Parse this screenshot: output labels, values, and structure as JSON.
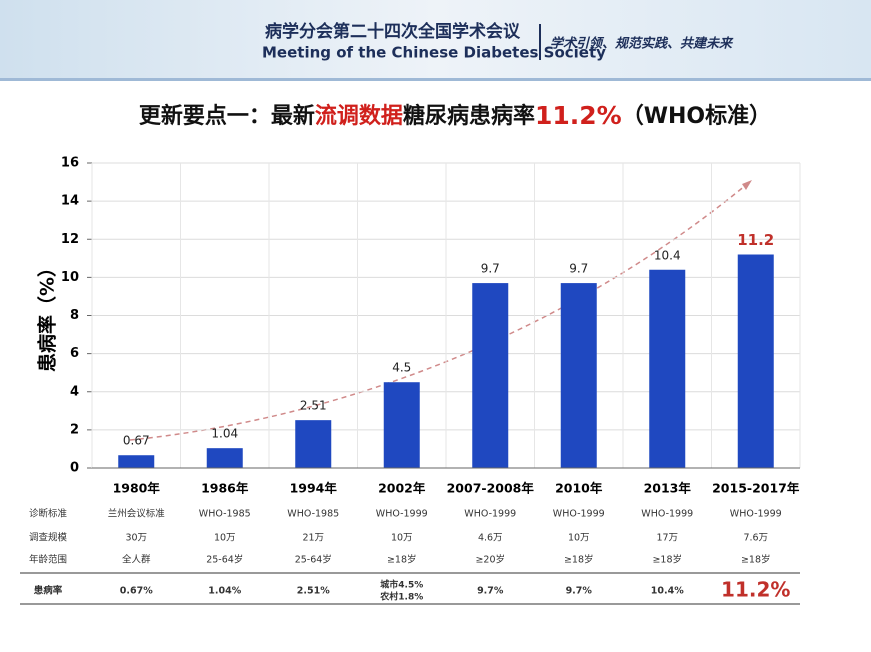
{
  "header": {
    "title": "病学分会第二十四次全国学术会议",
    "subtitle": "Meeting of the Chinese Diabetes Society",
    "slogan": "学术引领、规范实践、共建未来"
  },
  "title_parts": [
    {
      "text": "更新要点一：最新",
      "color": "#111111"
    },
    {
      "text": "流调数据",
      "color": "#d0201c"
    },
    {
      "text": "糖尿病患病率",
      "color": "#111111"
    },
    {
      "text": "11.2%",
      "color": "#d0201c"
    },
    {
      "text": "（WHO标准）",
      "color": "#111111"
    }
  ],
  "chart_data": {
    "type": "bar",
    "y_label": "患病率（%）",
    "categories": [
      "1980年",
      "1986年",
      "1994年",
      "2002年",
      "2007-2008年",
      "2010年",
      "2013年",
      "2015-2017年"
    ],
    "values": [
      0.67,
      1.04,
      2.51,
      4.5,
      9.7,
      9.7,
      10.4,
      11.2
    ],
    "color": "#1f48c0",
    "label_colors": [
      "#222222",
      "#222222",
      "#222222",
      "#222222",
      "#222222",
      "#222222",
      "#222222",
      "#c0302a"
    ],
    "ylim": [
      0,
      16
    ],
    "yticks": [
      0,
      2,
      4,
      6,
      8,
      10,
      12,
      14,
      16
    ],
    "grid": true
  },
  "table": {
    "rows": [
      {
        "label": "诊断标准",
        "cells": [
          "兰州会议标准",
          "WHO-1985",
          "WHO-1985",
          "WHO-1999",
          "WHO-1999",
          "WHO-1999",
          "WHO-1999",
          "WHO-1999"
        ]
      },
      {
        "label": "调查规模",
        "cells": [
          "30万",
          "10万",
          "21万",
          "10万",
          "4.6万",
          "10万",
          "17万",
          "7.6万"
        ]
      },
      {
        "label": "年龄范围",
        "cells": [
          "全人群",
          "25-64岁",
          "25-64岁",
          "≥18岁",
          "≥20岁",
          "≥18岁",
          "≥18岁",
          "≥18岁"
        ]
      },
      {
        "label": "患病率",
        "cells": [
          "0.67%",
          "1.04%",
          "2.51%",
          [
            "城市4.5%",
            "农村1.8%"
          ],
          "9.7%",
          "9.7%",
          "10.4%",
          "11.2%"
        ]
      }
    ]
  }
}
